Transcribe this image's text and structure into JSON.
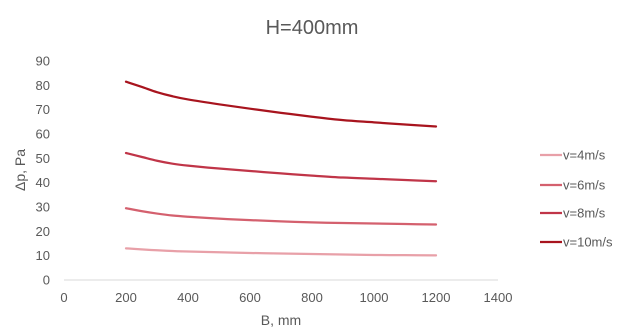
{
  "chart_data": {
    "type": "line",
    "title": "H=400mm",
    "xlabel": "B, mm",
    "ylabel": "Δp, Pa",
    "xlim": [
      0,
      1400
    ],
    "ylim": [
      0,
      90
    ],
    "x_ticks": [
      "0",
      "200",
      "400",
      "600",
      "800",
      "1000",
      "1200",
      "1400"
    ],
    "y_ticks": [
      "0",
      "10",
      "20",
      "30",
      "40",
      "50",
      "60",
      "70",
      "80",
      "90"
    ],
    "grid": false,
    "legend_position": "right",
    "x": [
      200,
      250,
      300,
      350,
      400,
      500,
      600,
      700,
      800,
      900,
      1000,
      1100,
      1200
    ],
    "series": [
      {
        "name": "v=4m/s",
        "color": "#e8a0a8",
        "values": [
          13.0,
          12.6,
          12.2,
          11.9,
          11.7,
          11.4,
          11.1,
          10.9,
          10.7,
          10.5,
          10.3,
          10.2,
          10.1
        ]
      },
      {
        "name": "v=6m/s",
        "color": "#d4606e",
        "values": [
          29.5,
          28.3,
          27.3,
          26.5,
          26.0,
          25.2,
          24.6,
          24.1,
          23.7,
          23.4,
          23.2,
          23.0,
          22.8
        ]
      },
      {
        "name": "v=8m/s",
        "color": "#c03548",
        "values": [
          52.2,
          50.6,
          49.0,
          47.8,
          47.0,
          45.8,
          44.8,
          43.8,
          42.9,
          42.1,
          41.6,
          41.1,
          40.6
        ]
      },
      {
        "name": "v=10m/s",
        "color": "#a8141e",
        "values": [
          81.5,
          79.4,
          77.2,
          75.5,
          74.2,
          72.2,
          70.4,
          68.7,
          67.1,
          65.7,
          64.8,
          63.9,
          63.1
        ]
      }
    ]
  }
}
